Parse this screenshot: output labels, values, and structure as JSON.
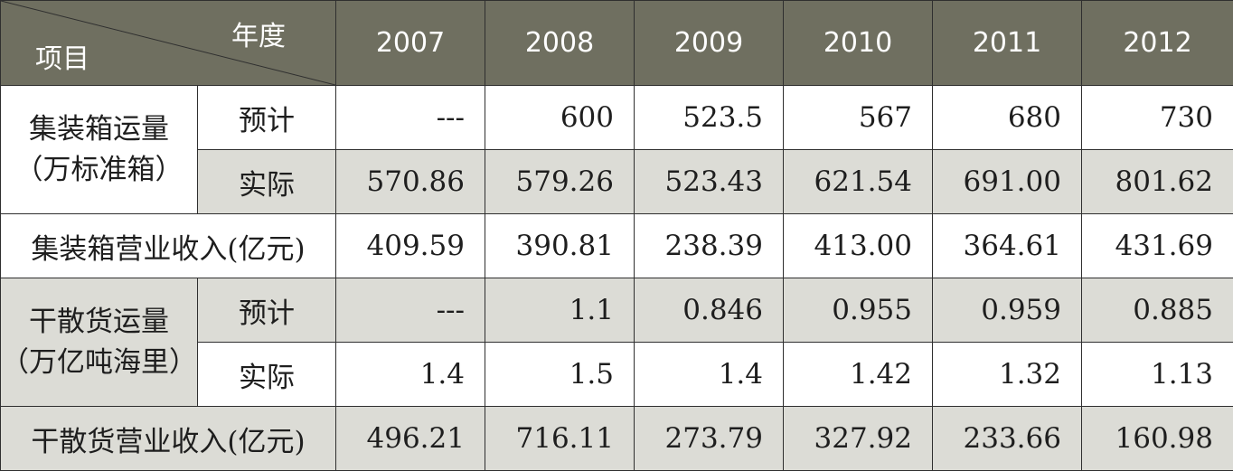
{
  "header": {
    "corner_year": "年度",
    "corner_item": "项目",
    "years": [
      "2007",
      "2008",
      "2009",
      "2010",
      "2011",
      "2012"
    ]
  },
  "container_volume": {
    "label_line1": "集装箱运量",
    "label_line2": "（万标准箱）",
    "forecast": {
      "label": "预计",
      "values": [
        "---",
        "600",
        "523.5",
        "567",
        "680",
        "730"
      ]
    },
    "actual": {
      "label": "实际",
      "values": [
        "570.86",
        "579.26",
        "523.43",
        "621.54",
        "691.00",
        "801.62"
      ]
    }
  },
  "container_revenue": {
    "label": "集装箱营业收入(亿元)",
    "values": [
      "409.59",
      "390.81",
      "238.39",
      "413.00",
      "364.61",
      "431.69"
    ]
  },
  "bulk_volume": {
    "label_line1": "干散货运量",
    "label_line2": "（万亿吨海里）",
    "forecast": {
      "label": "预计",
      "values": [
        "---",
        "1.1",
        "0.846",
        "0.955",
        "0.959",
        "0.885"
      ]
    },
    "actual": {
      "label": "实际",
      "values": [
        "1.4",
        "1.5",
        "1.4",
        "1.42",
        "1.32",
        "1.13"
      ]
    }
  },
  "bulk_revenue": {
    "label": "干散货营业收入(亿元)",
    "values": [
      "496.21",
      "716.11",
      "273.79",
      "327.92",
      "233.66",
      "160.98"
    ]
  }
}
